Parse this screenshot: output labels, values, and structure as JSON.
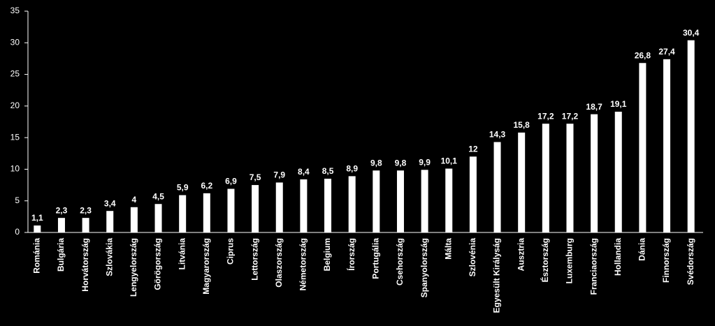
{
  "chart_data": {
    "type": "bar",
    "categories": [
      "Románia",
      "Bulgária",
      "Horvátország",
      "Szlovákia",
      "Lengyelország",
      "Görögország",
      "Litvánia",
      "Magyarország",
      "Ciprus",
      "Lettország",
      "Olaszország",
      "Németország",
      "Belgium",
      "Írország",
      "Portugália",
      "Csehország",
      "Spanyolország",
      "Málta",
      "Szlovénia",
      "Egyesült Királyság",
      "Ausztria",
      "Észtország",
      "Luxemburg",
      "Franciaország",
      "Hollandia",
      "Dánia",
      "Finnország",
      "Svédország"
    ],
    "values": [
      1.1,
      2.3,
      2.3,
      3.4,
      4,
      4.5,
      5.9,
      6.2,
      6.9,
      7.5,
      7.9,
      8.4,
      8.5,
      8.9,
      9.8,
      9.8,
      9.9,
      10.1,
      12,
      14.3,
      15.8,
      17.2,
      17.2,
      18.7,
      19.1,
      26.8,
      27.4,
      30.4
    ],
    "value_labels": [
      "1,1",
      "2,3",
      "2,3",
      "3,4",
      "4",
      "4,5",
      "5,9",
      "6,2",
      "6,9",
      "7,5",
      "7,9",
      "8,4",
      "8,5",
      "8,9",
      "9,8",
      "9,8",
      "9,9",
      "10,1",
      "12",
      "14,3",
      "15,8",
      "17,2",
      "17,2",
      "18,7",
      "19,1",
      "26,8",
      "27,4",
      "30,4"
    ],
    "color": "#ffffff",
    "ylim": [
      0,
      35
    ],
    "yticks": [
      0,
      5,
      10,
      15,
      20,
      25,
      30,
      35
    ],
    "grid": false
  }
}
